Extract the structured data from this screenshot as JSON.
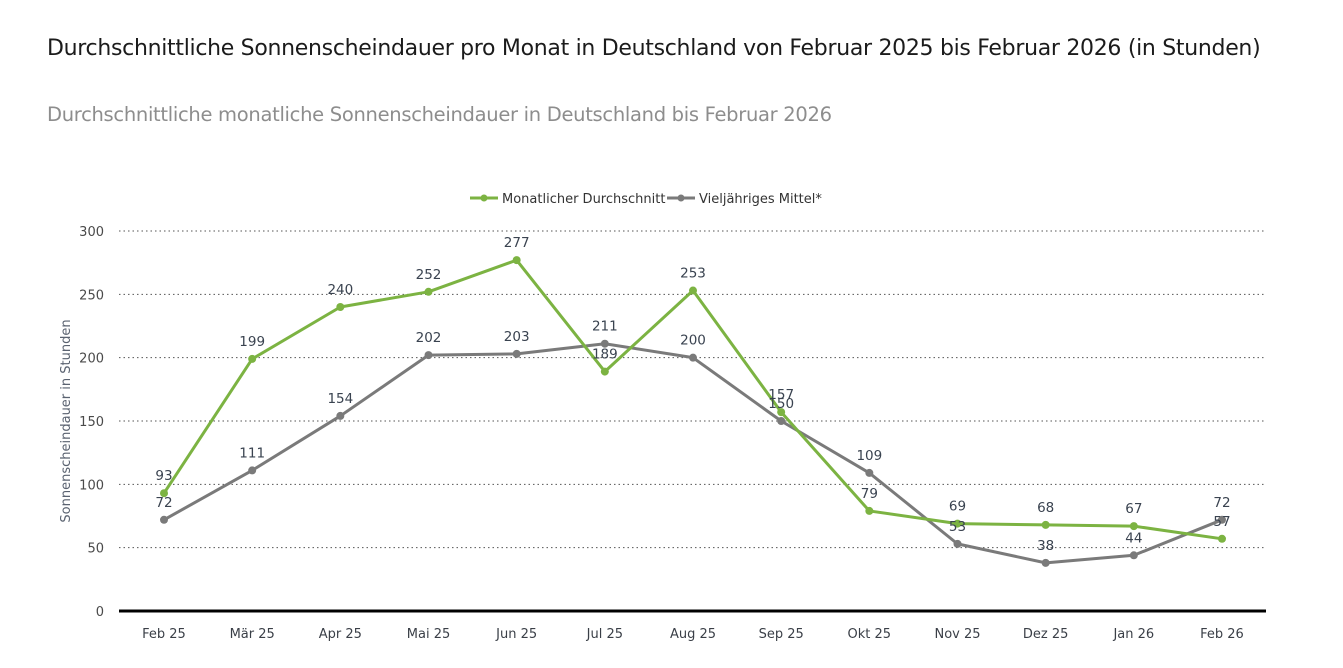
{
  "header": {
    "title": "Durchschnittliche Sonnenscheindauer pro Monat in Deutschland von Februar 2025 bis Februar 2026 (in Stunden)",
    "subtitle": "Durchschnittliche monatliche Sonnenscheindauer in Deutschland bis Februar 2026"
  },
  "chart_data": {
    "type": "line",
    "title": "Durchschnittliche Sonnenscheindauer pro Monat in Deutschland von Februar 2025 bis Februar 2026 (in Stunden)",
    "subtitle": "Durchschnittliche monatliche Sonnenscheindauer in Deutschland bis Februar 2026",
    "xlabel": "",
    "ylabel": "Sonnenscheindauer in Stunden",
    "ylim": [
      0,
      300
    ],
    "yticks": [
      0,
      50,
      100,
      150,
      200,
      250,
      300
    ],
    "grid": true,
    "legend_position": "top-center",
    "categories": [
      "Feb 25",
      "Mär 25",
      "Apr 25",
      "Mai 25",
      "Jun 25",
      "Jul 25",
      "Aug 25",
      "Sep 25",
      "Okt 25",
      "Nov 25",
      "Dez 25",
      "Jan 26",
      "Feb 26"
    ],
    "series": [
      {
        "name": "Monatlicher Durchschnitt",
        "color": "#7cb342",
        "values": [
          93,
          199,
          240,
          252,
          277,
          189,
          253,
          157,
          79,
          69,
          68,
          67,
          57
        ]
      },
      {
        "name": "Vieljähriges Mittel*",
        "color": "#7a7a7a",
        "values": [
          72,
          111,
          154,
          202,
          203,
          211,
          200,
          150,
          109,
          53,
          38,
          44,
          72
        ]
      }
    ]
  }
}
